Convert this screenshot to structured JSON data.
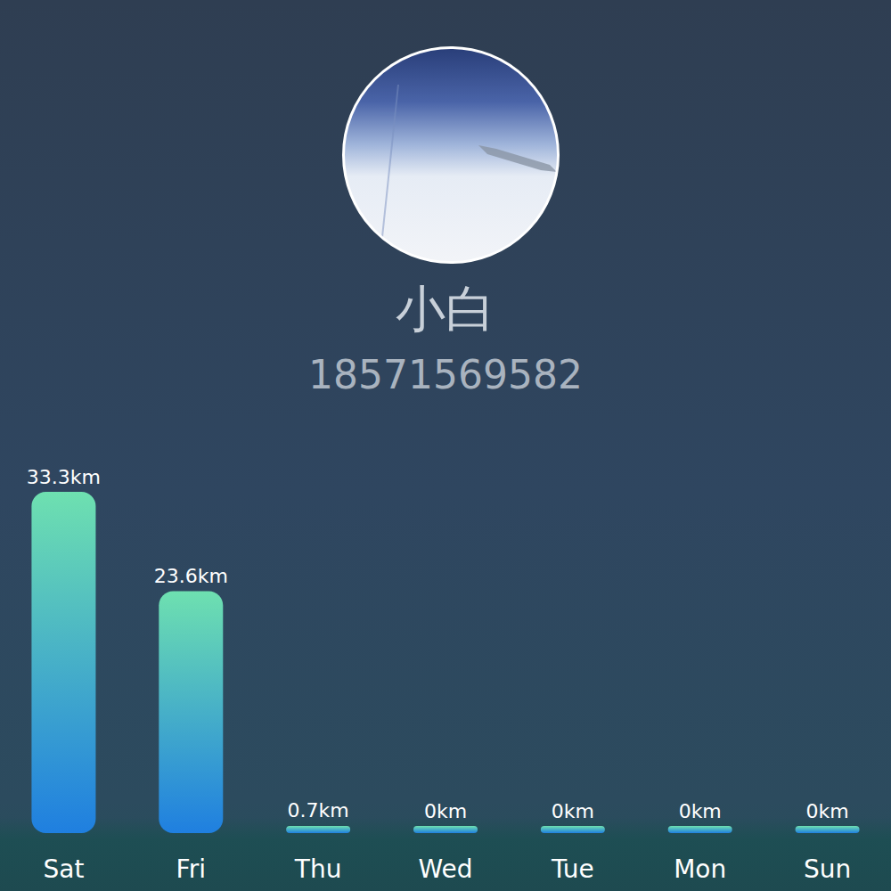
{
  "header": {
    "name": "小白",
    "phone": "18571569582"
  },
  "chart_data": {
    "type": "bar",
    "categories": [
      "Sat",
      "Fri",
      "Thu",
      "Wed",
      "Tue",
      "Mon",
      "Sun"
    ],
    "values": [
      33.3,
      23.6,
      0.7,
      0,
      0,
      0,
      0
    ],
    "value_labels": [
      "33.3km",
      "23.6km",
      "0.7km",
      "0km",
      "0km",
      "0km",
      "0km"
    ],
    "color": "#1f7fe0",
    "ylim": [
      0,
      40
    ],
    "grid": false,
    "data_labels": true,
    "tick_labels": "x"
  }
}
